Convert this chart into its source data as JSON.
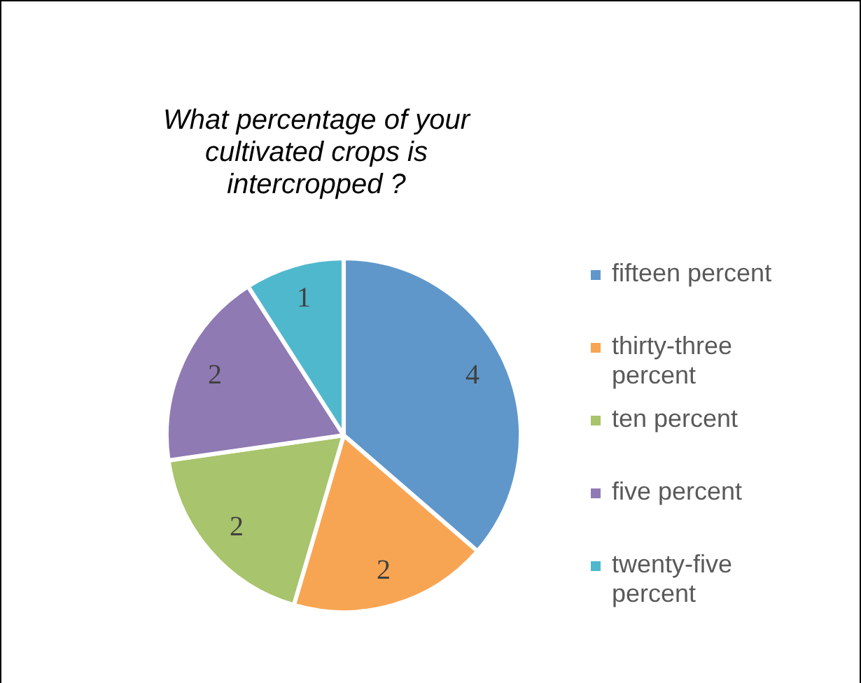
{
  "chart_data": {
    "type": "pie",
    "title": "What percentage of your cultivated crops is intercropped ?",
    "categories": [
      "fifteen percent",
      "thirty-three percent",
      "ten percent",
      "five percent",
      "twenty-five percent"
    ],
    "values": [
      4,
      2,
      2,
      2,
      1
    ],
    "colors": [
      "#5f97cb",
      "#f8a553",
      "#a8c46c",
      "#8f7ab3",
      "#50b8cd"
    ],
    "data_labels": true,
    "legend": "right"
  }
}
